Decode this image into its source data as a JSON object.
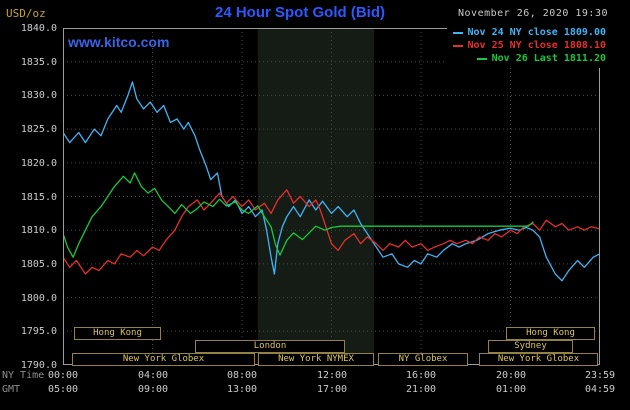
{
  "chart": {
    "title": "24 Hour Spot Gold (Bid)",
    "timestamp": "November 26, 2020 19:30",
    "unit_label": "USD/oz",
    "watermark": "www.kitco.com",
    "colors": {
      "background": "#000000",
      "grid": "#474747",
      "border": "#9c9c9c",
      "title": "#2b59ff",
      "watermark": "#3a62e8",
      "axis_text": "#cccccc",
      "axis_name_text": "#8f8f8f",
      "session_text": "#d9c463",
      "session_border": "#938244",
      "nov24_line": "#3fb4f6",
      "nov25_line": "#e62e2e",
      "nov26_line": "#17c93c"
    },
    "axis": {
      "ny_time_label": "NY Time",
      "gmt_label": "GMT",
      "y_ticks": [
        "1840.0",
        "1835.0",
        "1830.0",
        "1825.0",
        "1820.0",
        "1815.0",
        "1810.0",
        "1805.0",
        "1800.0",
        "1795.0",
        "1790.0"
      ],
      "y_tick_values": [
        1840,
        1835,
        1830,
        1825,
        1820,
        1815,
        1810,
        1805,
        1800,
        1795,
        1790
      ],
      "x_ticks_ny": [
        "00:00",
        "04:00",
        "08:00",
        "12:00",
        "16:00",
        "20:00",
        "23:59"
      ],
      "x_ticks_gmt": [
        "05:00",
        "09:00",
        "13:00",
        "17:00",
        "21:00",
        "01:00",
        "04:59"
      ],
      "x_tick_hours": [
        0,
        4,
        8,
        12,
        16,
        20,
        23.983
      ],
      "x_grid_hours": [
        4,
        8,
        12,
        16,
        20
      ]
    },
    "legend": {
      "items": [
        {
          "id": "nov24",
          "label": "Nov 24 NY close 1809.00",
          "color": "#3fb4f6"
        },
        {
          "id": "nov25",
          "label": "Nov 25 NY close 1808.10",
          "color": "#e62e2e"
        },
        {
          "id": "nov26",
          "label": "Nov 26 Last 1811.20",
          "color": "#17c93c"
        }
      ]
    },
    "nymex_band": {
      "start": 8.7,
      "end": 13.9,
      "color": "#151c15"
    },
    "sessions": [
      {
        "row": 0,
        "label": "Hong Kong",
        "start": 0.5,
        "end": 4.4
      },
      {
        "row": 0,
        "label": "Hong Kong",
        "start": 19.8,
        "end": 23.8
      },
      {
        "row": 1,
        "label": "London",
        "start": 5.9,
        "end": 12.6
      },
      {
        "row": 1,
        "label": "Sydney",
        "start": 19.0,
        "end": 22.8
      },
      {
        "row": 2,
        "label": "New York Globex",
        "start": 0.4,
        "end": 8.6
      },
      {
        "row": 2,
        "label": "New York NYMEX",
        "start": 8.7,
        "end": 13.9
      },
      {
        "row": 2,
        "label": "NY Globex",
        "start": 14.1,
        "end": 18.1
      },
      {
        "row": 2,
        "label": "New York Globex",
        "start": 18.6,
        "end": 23.9
      }
    ]
  },
  "chart_data": {
    "type": "line",
    "title": "24 Hour Spot Gold (Bid)",
    "xlabel": "NY Time (hours)",
    "ylabel": "USD/oz",
    "xlim": [
      0,
      24
    ],
    "ylim": [
      1790,
      1840
    ],
    "grid": true,
    "legend_position": "top-right",
    "series": [
      {
        "id": "nov24",
        "name": "Nov 24 NY close 1809.00",
        "color": "#3fb4f6",
        "points": [
          [
            0,
            1824.5
          ],
          [
            0.3,
            1823
          ],
          [
            0.7,
            1824.5
          ],
          [
            1,
            1823
          ],
          [
            1.4,
            1825
          ],
          [
            1.7,
            1824
          ],
          [
            2,
            1826.5
          ],
          [
            2.4,
            1828.5
          ],
          [
            2.6,
            1827.5
          ],
          [
            2.9,
            1830
          ],
          [
            3.1,
            1832
          ],
          [
            3.3,
            1829.5
          ],
          [
            3.6,
            1828
          ],
          [
            3.9,
            1829
          ],
          [
            4.2,
            1827.5
          ],
          [
            4.5,
            1828.5
          ],
          [
            4.8,
            1826
          ],
          [
            5.1,
            1826.5
          ],
          [
            5.4,
            1825
          ],
          [
            5.6,
            1826
          ],
          [
            5.9,
            1824
          ],
          [
            6.1,
            1822
          ],
          [
            6.4,
            1819.5
          ],
          [
            6.6,
            1817.5
          ],
          [
            6.9,
            1818.5
          ],
          [
            7.1,
            1815
          ],
          [
            7.4,
            1813.5
          ],
          [
            7.7,
            1814.5
          ],
          [
            8,
            1812.5
          ],
          [
            8.3,
            1813.5
          ],
          [
            8.6,
            1812
          ],
          [
            8.9,
            1813
          ],
          [
            9.1,
            1810
          ],
          [
            9.3,
            1806
          ],
          [
            9.45,
            1803.5
          ],
          [
            9.6,
            1808
          ],
          [
            9.8,
            1810.5
          ],
          [
            10,
            1812
          ],
          [
            10.3,
            1813.5
          ],
          [
            10.6,
            1812
          ],
          [
            11,
            1814.5
          ],
          [
            11.3,
            1813
          ],
          [
            11.6,
            1814.3
          ],
          [
            12,
            1812.5
          ],
          [
            12.3,
            1813.5
          ],
          [
            12.7,
            1812
          ],
          [
            13,
            1813
          ],
          [
            13.3,
            1811
          ],
          [
            13.7,
            1809
          ],
          [
            14,
            1807.5
          ],
          [
            14.3,
            1806
          ],
          [
            14.7,
            1806.5
          ],
          [
            15,
            1805
          ],
          [
            15.4,
            1804.5
          ],
          [
            15.7,
            1805.5
          ],
          [
            16,
            1805
          ],
          [
            16.3,
            1806.5
          ],
          [
            16.7,
            1806
          ],
          [
            17,
            1807
          ],
          [
            17.4,
            1808
          ],
          [
            17.7,
            1807.5
          ],
          [
            18,
            1808
          ],
          [
            18.5,
            1808.5
          ],
          [
            19,
            1809.5
          ],
          [
            19.5,
            1810
          ],
          [
            20,
            1810.3
          ],
          [
            20.4,
            1810
          ],
          [
            20.7,
            1810.4
          ],
          [
            21,
            1810
          ],
          [
            21.3,
            1809
          ],
          [
            21.6,
            1806
          ],
          [
            22,
            1803.5
          ],
          [
            22.3,
            1802.5
          ],
          [
            22.6,
            1804
          ],
          [
            23,
            1805.5
          ],
          [
            23.3,
            1804.5
          ],
          [
            23.7,
            1806
          ],
          [
            24,
            1806.5
          ]
        ]
      },
      {
        "id": "nov25",
        "name": "Nov 25 NY close 1808.10",
        "color": "#e62e2e",
        "points": [
          [
            0,
            1806
          ],
          [
            0.3,
            1804.5
          ],
          [
            0.6,
            1805.5
          ],
          [
            1,
            1803.5
          ],
          [
            1.3,
            1804.5
          ],
          [
            1.6,
            1804
          ],
          [
            2,
            1805.5
          ],
          [
            2.3,
            1805
          ],
          [
            2.6,
            1806.5
          ],
          [
            3,
            1806
          ],
          [
            3.3,
            1807
          ],
          [
            3.6,
            1806.2
          ],
          [
            4,
            1807.5
          ],
          [
            4.3,
            1807
          ],
          [
            4.6,
            1808.5
          ],
          [
            5,
            1810
          ],
          [
            5.3,
            1812
          ],
          [
            5.6,
            1813.5
          ],
          [
            6,
            1814.5
          ],
          [
            6.3,
            1813
          ],
          [
            6.6,
            1814
          ],
          [
            7,
            1815.5
          ],
          [
            7.3,
            1814
          ],
          [
            7.6,
            1815
          ],
          [
            8,
            1813.5
          ],
          [
            8.3,
            1814.5
          ],
          [
            8.6,
            1813
          ],
          [
            9,
            1814
          ],
          [
            9.3,
            1812.5
          ],
          [
            9.6,
            1814.5
          ],
          [
            10,
            1816
          ],
          [
            10.3,
            1814
          ],
          [
            10.6,
            1815
          ],
          [
            11,
            1813.5
          ],
          [
            11.3,
            1814.5
          ],
          [
            11.5,
            1813
          ],
          [
            11.8,
            1810
          ],
          [
            12,
            1808
          ],
          [
            12.3,
            1807
          ],
          [
            12.6,
            1808.5
          ],
          [
            13,
            1809.5
          ],
          [
            13.3,
            1808
          ],
          [
            13.6,
            1809
          ],
          [
            14,
            1808
          ],
          [
            14.3,
            1807
          ],
          [
            14.6,
            1808
          ],
          [
            15,
            1807.5
          ],
          [
            15.3,
            1808.5
          ],
          [
            15.6,
            1807.5
          ],
          [
            16,
            1808
          ],
          [
            16.3,
            1807
          ],
          [
            16.6,
            1807.5
          ],
          [
            17,
            1808
          ],
          [
            17.3,
            1808.5
          ],
          [
            17.6,
            1808
          ],
          [
            18,
            1808.5
          ],
          [
            18.3,
            1808
          ],
          [
            18.6,
            1809
          ],
          [
            19,
            1808.5
          ],
          [
            19.3,
            1809.5
          ],
          [
            19.6,
            1809
          ],
          [
            20,
            1810
          ],
          [
            20.3,
            1809.5
          ],
          [
            20.6,
            1810.5
          ],
          [
            21,
            1811
          ],
          [
            21.3,
            1810
          ],
          [
            21.6,
            1811.5
          ],
          [
            22,
            1810.5
          ],
          [
            22.3,
            1811
          ],
          [
            22.6,
            1810
          ],
          [
            23,
            1810.5
          ],
          [
            23.3,
            1810
          ],
          [
            23.6,
            1810.5
          ],
          [
            24,
            1810.2
          ]
        ]
      },
      {
        "id": "nov26",
        "name": "Nov 26 Last 1811.20",
        "color": "#17c93c",
        "points": [
          [
            0,
            1809.5
          ],
          [
            0.2,
            1807.5
          ],
          [
            0.45,
            1806
          ],
          [
            0.7,
            1808
          ],
          [
            1,
            1810
          ],
          [
            1.3,
            1812
          ],
          [
            1.7,
            1813.5
          ],
          [
            2,
            1815
          ],
          [
            2.3,
            1816.5
          ],
          [
            2.7,
            1818
          ],
          [
            3,
            1817
          ],
          [
            3.2,
            1818.5
          ],
          [
            3.5,
            1816.5
          ],
          [
            3.8,
            1815.5
          ],
          [
            4.1,
            1816.2
          ],
          [
            4.4,
            1814.5
          ],
          [
            4.7,
            1813.5
          ],
          [
            5,
            1812.5
          ],
          [
            5.3,
            1813.8
          ],
          [
            5.7,
            1812.5
          ],
          [
            6,
            1813.2
          ],
          [
            6.3,
            1814.2
          ],
          [
            6.7,
            1813.5
          ],
          [
            7,
            1814.6
          ],
          [
            7.3,
            1813.6
          ],
          [
            7.7,
            1814.2
          ],
          [
            8,
            1813
          ],
          [
            8.3,
            1812.5
          ],
          [
            8.7,
            1813.6
          ],
          [
            9,
            1812
          ],
          [
            9.3,
            1810.5
          ],
          [
            9.5,
            1807.8
          ],
          [
            9.7,
            1806.3
          ],
          [
            10,
            1808.5
          ],
          [
            10.3,
            1809.6
          ],
          [
            10.7,
            1808.6
          ],
          [
            11,
            1809.6
          ],
          [
            11.3,
            1810.6
          ],
          [
            11.7,
            1810
          ],
          [
            12,
            1810.4
          ],
          [
            12.4,
            1810.6
          ],
          [
            13,
            1810.6
          ],
          [
            14,
            1810.6
          ],
          [
            15,
            1810.6
          ],
          [
            16,
            1810.6
          ],
          [
            17,
            1810.6
          ],
          [
            18,
            1810.6
          ],
          [
            19,
            1810.6
          ],
          [
            20,
            1810.6
          ],
          [
            20.8,
            1810.6
          ],
          [
            21,
            1811.2
          ]
        ]
      }
    ]
  }
}
